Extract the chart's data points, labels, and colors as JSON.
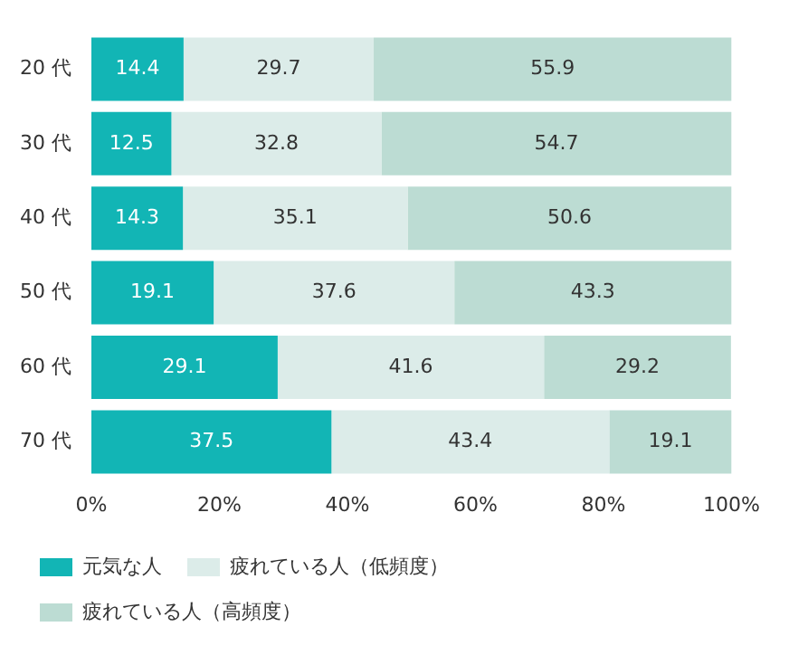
{
  "chart_data": {
    "type": "bar",
    "orientation": "horizontal",
    "stacked": true,
    "categories": [
      "20 代",
      "30 代",
      "40 代",
      "50 代",
      "60 代",
      "70 代"
    ],
    "series": [
      {
        "name": "元気な人",
        "color": "#12b5b5",
        "values": [
          14.4,
          12.5,
          14.3,
          19.1,
          29.1,
          37.5
        ]
      },
      {
        "name": "疲れている人（低頻度）",
        "color": "#dcece9",
        "values": [
          29.7,
          32.8,
          35.1,
          37.6,
          41.6,
          43.4
        ]
      },
      {
        "name": "疲れている人（高頻度）",
        "color": "#bcdcd3",
        "values": [
          55.9,
          54.7,
          50.6,
          43.3,
          29.2,
          19.1
        ]
      }
    ],
    "xlim": [
      0,
      100
    ],
    "xticks": [
      {
        "value": 0,
        "label": "0%"
      },
      {
        "value": 20,
        "label": "20%"
      },
      {
        "value": 40,
        "label": "40%"
      },
      {
        "value": 60,
        "label": "60%"
      },
      {
        "value": 80,
        "label": "80%"
      },
      {
        "value": 100,
        "label": "100%"
      }
    ],
    "data_labels": true,
    "legend": "bottom",
    "grid": false
  }
}
